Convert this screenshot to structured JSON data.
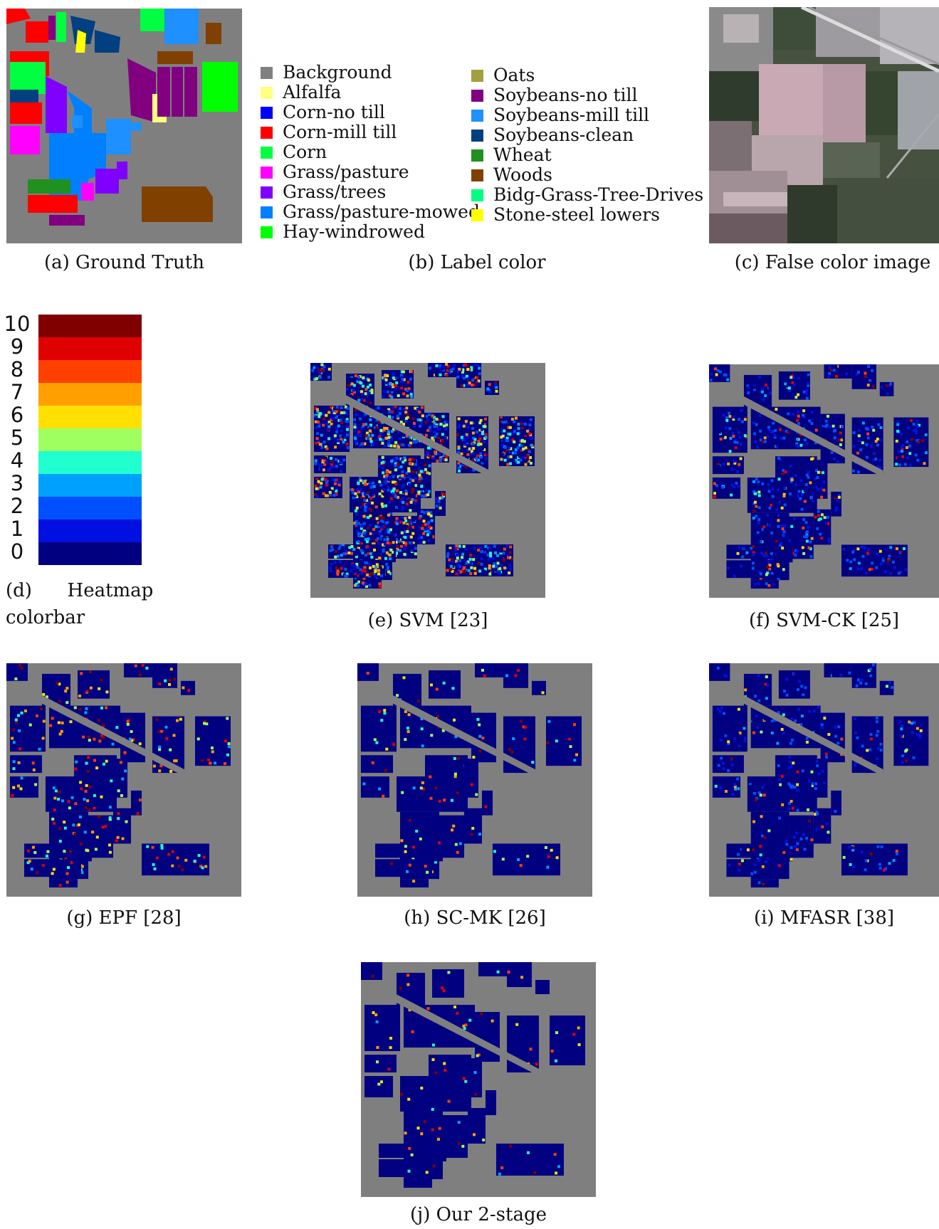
{
  "panels": {
    "a": {
      "caption": "(a) Ground Truth"
    },
    "b": {
      "caption": "(b) Label color"
    },
    "c": {
      "caption": "(c) False color image"
    },
    "d": {
      "caption_line1": "(d)      Heatmap",
      "caption_line2": "colorbar"
    },
    "e": {
      "caption": "(e) SVM [23]"
    },
    "f": {
      "caption": "(f) SVM-CK [25]"
    },
    "g": {
      "caption": "(g) EPF [28]"
    },
    "h": {
      "caption": "(h) SC-MK [26]"
    },
    "i": {
      "caption": "(i) MFASR [38]"
    },
    "j": {
      "caption": "(j) Our 2-stage"
    }
  },
  "legend": {
    "left": [
      {
        "label": "Background",
        "color": "#808080"
      },
      {
        "label": "Alfalfa",
        "color": "#ffff80"
      },
      {
        "label": "Corn-no till",
        "color": "#0000ff"
      },
      {
        "label": "Corn-mill till",
        "color": "#ff0000"
      },
      {
        "label": "Corn",
        "color": "#00ff40"
      },
      {
        "label": "Grass/pasture",
        "color": "#ff00ff"
      },
      {
        "label": "Grass/trees",
        "color": "#8000ff"
      },
      {
        "label": "Grass/pasture-mowed",
        "color": "#0080ff"
      },
      {
        "label": "Hay-windrowed",
        "color": "#00ff00"
      }
    ],
    "right": [
      {
        "label": "Oats",
        "color": "#a0a040"
      },
      {
        "label": "Soybeans-no till",
        "color": "#800080"
      },
      {
        "label": "Soybeans-mill till",
        "color": "#1e90ff"
      },
      {
        "label": "Soybeans-clean",
        "color": "#004080"
      },
      {
        "label": "Wheat",
        "color": "#209020"
      },
      {
        "label": "Woods",
        "color": "#804000"
      },
      {
        "label": "Bidg-Grass-Tree-Drives",
        "color": "#00ff80"
      },
      {
        "label": "Stone-steel lowers",
        "color": "#ffff00"
      }
    ]
  },
  "colorbar": {
    "labels": [
      "10",
      "9",
      "8",
      "7",
      "6",
      "5",
      "4",
      "3",
      "2",
      "1",
      "0"
    ],
    "colors": [
      "#800000",
      "#e00000",
      "#ff4000",
      "#ffa000",
      "#ffe000",
      "#a0ff60",
      "#20ffd0",
      "#00a0ff",
      "#0050ff",
      "#0010e0",
      "#000080"
    ]
  }
}
